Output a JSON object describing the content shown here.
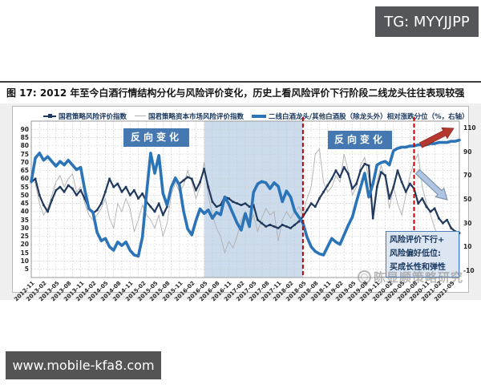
{
  "badge": {
    "text": "TG: MYYJJPP"
  },
  "figure": {
    "title": "图 17:  2012 年至今白酒行情结构分化与风险评价变化，历史上看风险评价下行阶段二线龙头往往表现较强"
  },
  "watermark": {
    "text": "陈显顺策略研究",
    "icon": "circle-logo"
  },
  "footer": {
    "url": "www.mobile-kfa8.com"
  },
  "chart_data": {
    "type": "line",
    "title": "2012年至今白酒行情结构分化与风险评价变化",
    "x_monthly_start": "2012-11",
    "x_monthly_end": "2021-07",
    "x_tick_labels": [
      "2012-11",
      "2013-02",
      "2013-05",
      "2013-08",
      "2013-11",
      "2014-02",
      "2014-05",
      "2014-08",
      "2014-11",
      "2015-02",
      "2015-05",
      "2015-08",
      "2015-11",
      "2016-02",
      "2016-05",
      "2016-08",
      "2016-11",
      "2017-02",
      "2017-05",
      "2017-08",
      "2017-11",
      "2018-02",
      "2018-05",
      "2018-08",
      "2018-11",
      "2019-02",
      "2019-05",
      "2019-08",
      "2019-11",
      "2020-02",
      "2020-05",
      "2020-08",
      "2020-11",
      "2021-02",
      "2021-05"
    ],
    "grid": true,
    "legend_position": "top",
    "y_left": {
      "min": 0,
      "max": 95,
      "ticks": [
        90,
        85,
        80,
        75,
        70,
        65,
        60,
        55,
        50,
        45,
        40,
        35,
        30,
        25,
        20,
        15,
        10,
        5
      ]
    },
    "y_right": {
      "min": -16,
      "max": 116,
      "ticks": [
        110,
        90,
        70,
        50,
        30,
        10,
        -10
      ]
    },
    "series": [
      {
        "name": "国君策略风险评价指数",
        "axis": "left",
        "color": "#20395c",
        "style": "line-markers",
        "values": [
          58,
          60,
          50,
          44,
          40,
          47,
          53,
          55,
          52,
          56,
          54,
          50,
          53,
          48,
          42,
          39,
          41,
          45,
          52,
          60,
          55,
          57,
          52,
          55,
          50,
          53,
          48,
          51,
          46,
          43,
          40,
          45,
          38,
          43,
          55,
          60,
          57,
          59,
          61,
          60,
          53,
          58,
          66,
          55,
          46,
          43,
          44,
          49,
          48,
          46,
          45,
          44,
          45,
          43,
          44,
          35,
          33,
          31,
          32,
          31,
          30,
          32,
          31,
          30,
          32,
          34,
          37,
          41,
          45,
          43,
          48,
          52,
          56,
          60,
          65,
          61,
          67,
          63,
          54,
          57,
          65,
          69,
          68,
          36,
          55,
          64,
          62,
          48,
          55,
          65,
          58,
          52,
          57,
          54,
          45,
          48,
          43,
          40,
          42,
          36,
          33,
          35,
          30,
          28,
          27
        ]
      },
      {
        "name": "国君策略资本市场风险评价指数",
        "axis": "left",
        "color": "#b0b0b0",
        "style": "thin-line",
        "values": [
          62,
          57,
          45,
          38,
          42,
          50,
          58,
          62,
          55,
          60,
          63,
          52,
          55,
          45,
          38,
          35,
          38,
          42,
          48,
          36,
          30,
          45,
          40,
          48,
          42,
          28,
          35,
          44,
          38,
          35,
          30,
          38,
          25,
          33,
          50,
          58,
          52,
          56,
          65,
          58,
          48,
          55,
          70,
          50,
          38,
          30,
          25,
          15,
          22,
          18,
          25,
          35,
          40,
          32,
          38,
          28,
          36,
          42,
          38,
          40,
          22,
          35,
          40,
          36,
          40,
          43,
          38,
          48,
          55,
          75,
          78,
          58,
          52,
          55,
          62,
          58,
          75,
          65,
          50,
          55,
          68,
          73,
          60,
          40,
          58,
          68,
          60,
          42,
          55,
          45,
          38,
          50,
          62,
          70,
          75,
          55,
          45,
          38,
          30,
          25,
          28,
          24,
          20,
          18,
          17
        ]
      },
      {
        "name": "二线白酒龙头/其他白酒股（除龙头外）相对涨跌分位（%，右轴）",
        "axis": "right",
        "color": "#2b74b8",
        "style": "thick-line",
        "values": [
          65,
          85,
          89,
          83,
          86,
          82,
          78,
          82,
          79,
          83,
          79,
          75,
          77,
          58,
          42,
          39,
          22,
          15,
          17,
          10,
          7,
          14,
          11,
          14,
          7,
          3,
          2,
          18,
          55,
          89,
          72,
          87,
          55,
          45,
          60,
          68,
          62,
          40,
          25,
          20,
          32,
          42,
          38,
          41,
          34,
          39,
          37,
          52,
          46,
          38,
          30,
          24,
          38,
          27,
          56,
          63,
          65,
          64,
          59,
          64,
          61,
          48,
          57,
          52,
          40,
          35,
          30,
          18,
          10,
          6,
          4,
          3,
          10,
          17,
          14,
          12,
          20,
          28,
          35,
          48,
          60,
          72,
          52,
          63,
          79,
          81,
          82,
          79,
          91,
          93,
          94,
          94,
          95,
          95,
          96,
          96,
          96,
          97,
          97,
          98,
          98,
          98,
          99,
          99,
          100
        ]
      }
    ],
    "shaded_region": {
      "from": "2016-05",
      "to": "2018-05",
      "color": "#bfd3e8"
    },
    "dashed_lines": [
      {
        "x": "2018-05"
      },
      {
        "x": "2020-08"
      }
    ],
    "dashed_line_color": "#c00000",
    "annotations": {
      "reverse_label_1": "反向变化",
      "reverse_label_2": "反向变化",
      "label_box_color": "#4577b0",
      "note_lines": [
        "风险评价下行+",
        "风险偏好低位:",
        "买成长性和弹性"
      ],
      "up_arrow_color": "#b5382f",
      "down_arrow_color": "#aec6e4",
      "down_arrow_outline": "#7f94ab"
    }
  }
}
